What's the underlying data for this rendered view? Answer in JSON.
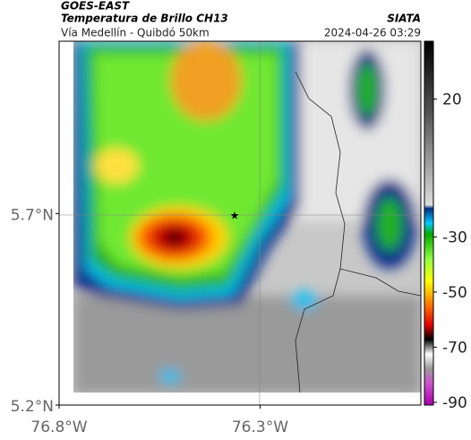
{
  "header": {
    "title": "GOES-EAST",
    "subtitle": "Temperatura de Brillo CH13",
    "source": "SIATA",
    "route": "Vía Medellín - Quibdó 50km",
    "timestamp": "2024-04-26 03:29"
  },
  "map": {
    "xlim": [
      -76.8,
      -75.9
    ],
    "ylim": [
      5.2,
      6.15
    ],
    "xticks": [
      {
        "value": -76.8,
        "label": "76.8°W"
      },
      {
        "value": -76.3,
        "label": "76.3°W"
      }
    ],
    "yticks": [
      {
        "value": 5.7,
        "label": "5.7°N"
      },
      {
        "value": 5.2,
        "label": "5.2°N"
      }
    ]
  },
  "colorbar": {
    "lim": [
      -91,
      41
    ],
    "ticks": [
      20,
      -30,
      -50,
      -70,
      -90
    ]
  }
}
